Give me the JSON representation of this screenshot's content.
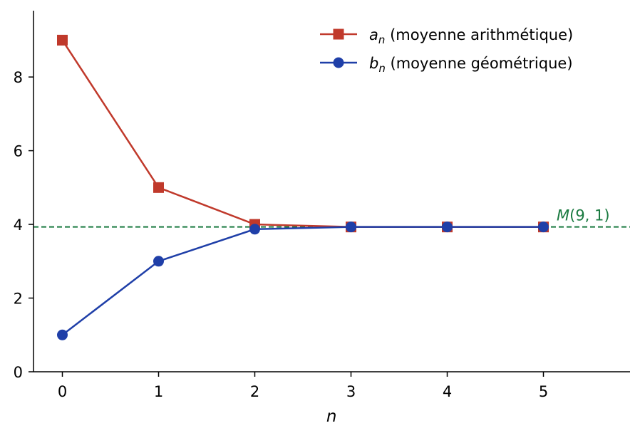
{
  "chart_data": {
    "type": "line",
    "title": "",
    "xlabel": "n",
    "ylabel": "",
    "x": [
      0,
      1,
      2,
      3,
      4,
      5
    ],
    "xlim": [
      -0.3,
      5.9
    ],
    "ylim": [
      0,
      9.8
    ],
    "x_ticks": [
      0,
      1,
      2,
      3,
      4,
      5
    ],
    "y_ticks": [
      0,
      2,
      4,
      6,
      8
    ],
    "grid": false,
    "legend_position": "top-right",
    "series": [
      {
        "name_symbol": "a",
        "name_subscript": "n",
        "name_text": " (moyenne arithmétique)",
        "marker": "square",
        "color": "#c0392b",
        "values": [
          9,
          5,
          4,
          3.93,
          3.93,
          3.93
        ]
      },
      {
        "name_symbol": "b",
        "name_subscript": "n",
        "name_text": " (moyenne géométrique)",
        "marker": "circle",
        "color": "#1f3fa8",
        "values": [
          1,
          3,
          3.87,
          3.93,
          3.93,
          3.93
        ]
      }
    ],
    "reference_line": {
      "y": 3.93,
      "style": "dashed",
      "color": "#1a7a40",
      "label_prefix": "M",
      "label_args": "(9, 1)"
    }
  }
}
